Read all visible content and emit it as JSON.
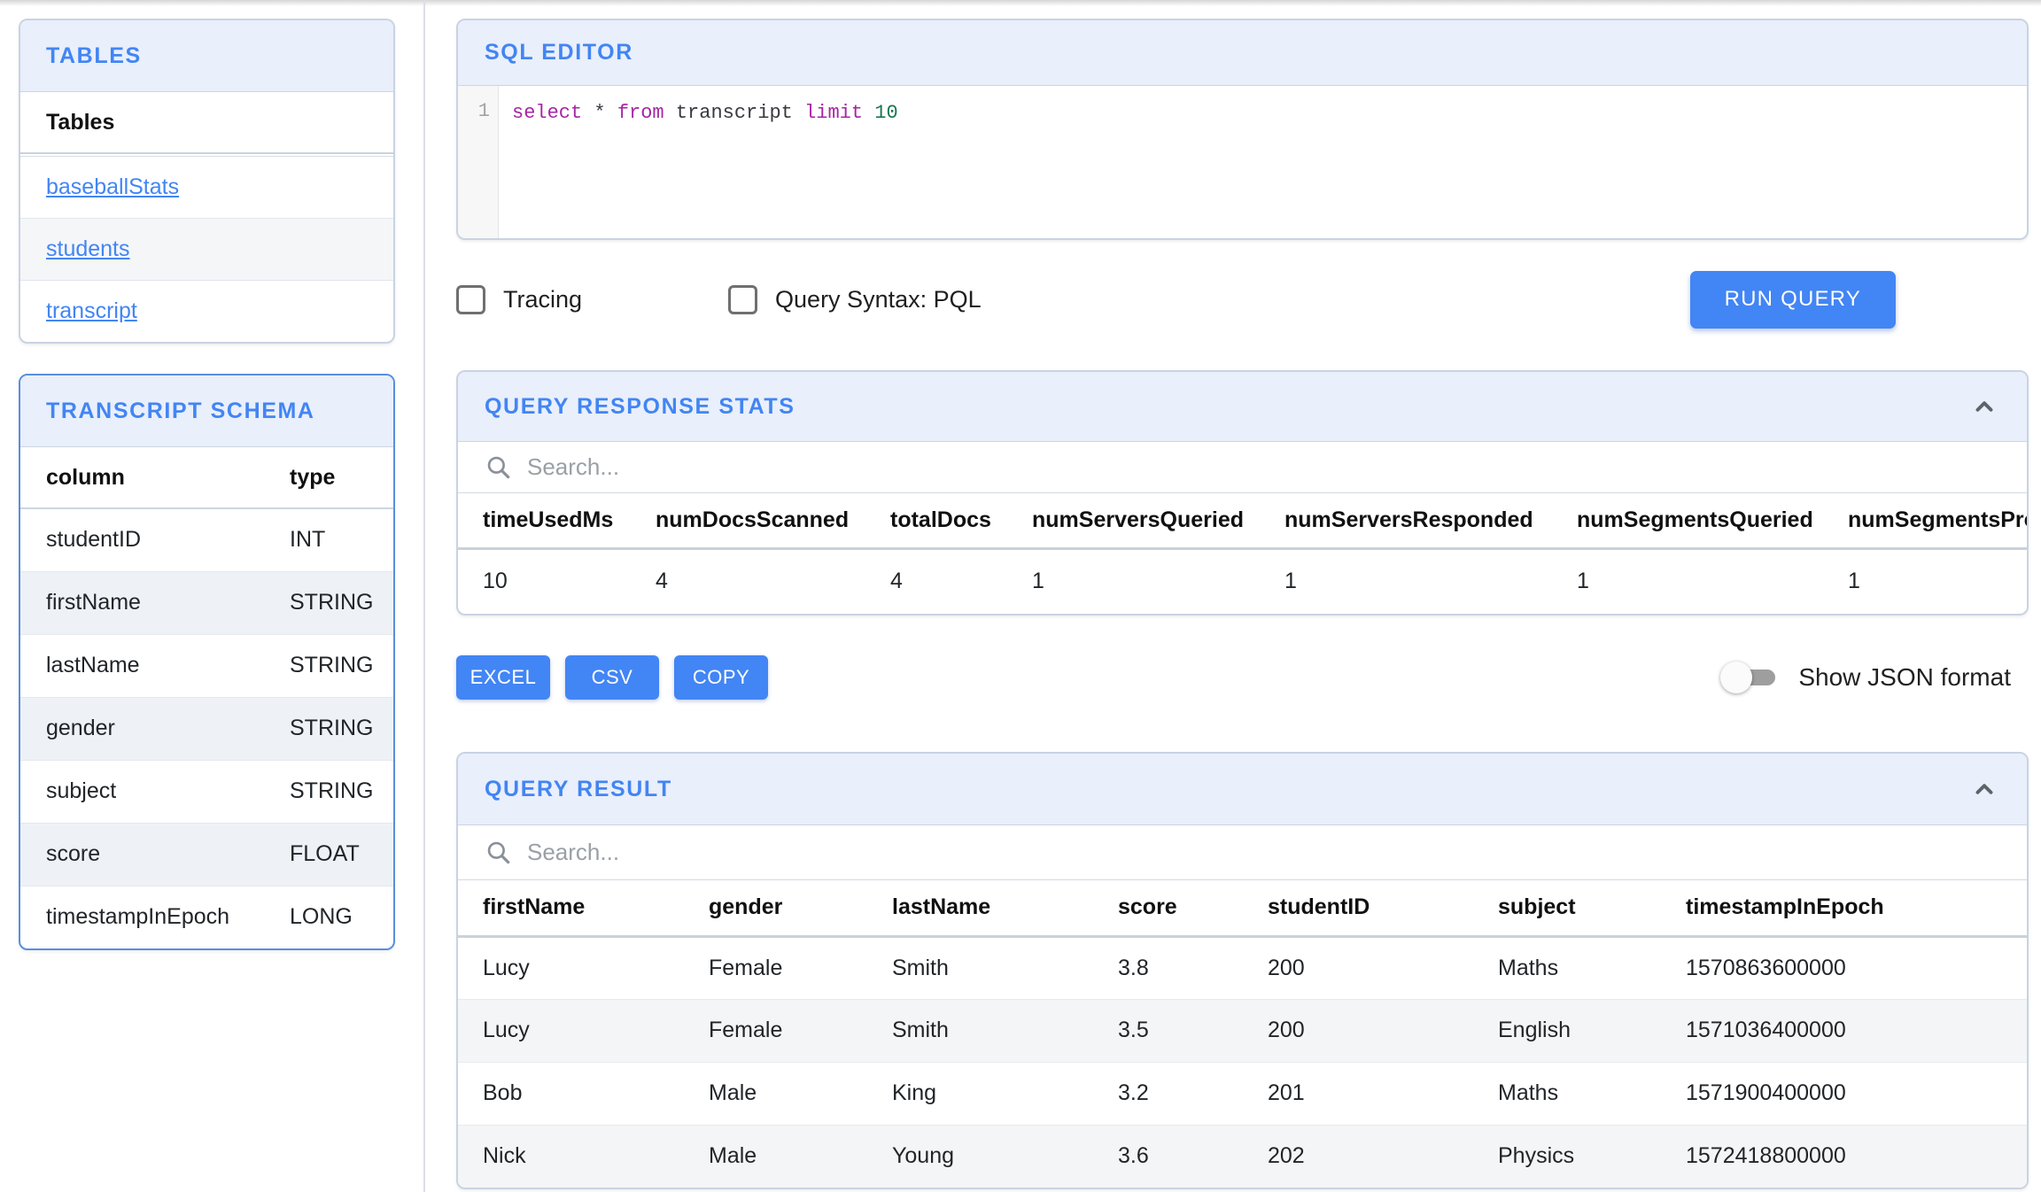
{
  "sidebar": {
    "tables_panel": {
      "title": "TABLES",
      "list_header": "Tables",
      "tables": [
        "baseballStats",
        "students",
        "transcript"
      ]
    },
    "schema_panel": {
      "title": "TRANSCRIPT SCHEMA",
      "columns": [
        "column",
        "type"
      ],
      "rows": [
        [
          "studentID",
          "INT"
        ],
        [
          "firstName",
          "STRING"
        ],
        [
          "lastName",
          "STRING"
        ],
        [
          "gender",
          "STRING"
        ],
        [
          "subject",
          "STRING"
        ],
        [
          "score",
          "FLOAT"
        ],
        [
          "timestampInEpoch",
          "LONG"
        ]
      ]
    }
  },
  "editor": {
    "title": "SQL EDITOR",
    "line_number": "1",
    "query_tokens": [
      {
        "text": "select",
        "type": "keyword"
      },
      {
        "text": " ",
        "type": "plain"
      },
      {
        "text": "*",
        "type": "plain"
      },
      {
        "text": " ",
        "type": "plain"
      },
      {
        "text": "from",
        "type": "keyword"
      },
      {
        "text": " transcript ",
        "type": "plain"
      },
      {
        "text": "limit",
        "type": "keyword"
      },
      {
        "text": " ",
        "type": "plain"
      },
      {
        "text": "10",
        "type": "number"
      }
    ]
  },
  "options": {
    "tracing_label": "Tracing",
    "tracing_checked": false,
    "pql_label": "Query Syntax: PQL",
    "pql_checked": false,
    "run_button_label": "RUN QUERY"
  },
  "stats_panel": {
    "title": "QUERY RESPONSE STATS",
    "search_placeholder": "Search...",
    "columns": [
      "timeUsedMs",
      "numDocsScanned",
      "totalDocs",
      "numServersQueried",
      "numServersResponded",
      "numSegmentsQueried",
      "numSegmentsProcessed"
    ],
    "rows": [
      [
        "10",
        "4",
        "4",
        "1",
        "1",
        "1",
        "1"
      ]
    ]
  },
  "export": {
    "excel_label": "EXCEL",
    "csv_label": "CSV",
    "copy_label": "COPY",
    "toggle_label": "Show JSON format",
    "toggle_on": false
  },
  "result_panel": {
    "title": "QUERY RESULT",
    "search_placeholder": "Search...",
    "columns": [
      "firstName",
      "gender",
      "lastName",
      "score",
      "studentID",
      "subject",
      "timestampInEpoch"
    ],
    "rows": [
      [
        "Lucy",
        "Female",
        "Smith",
        "3.8",
        "200",
        "Maths",
        "1570863600000"
      ],
      [
        "Lucy",
        "Female",
        "Smith",
        "3.5",
        "200",
        "English",
        "1571036400000"
      ],
      [
        "Bob",
        "Male",
        "King",
        "3.2",
        "201",
        "Maths",
        "1571900400000"
      ],
      [
        "Nick",
        "Male",
        "Young",
        "3.6",
        "202",
        "Physics",
        "1572418800000"
      ]
    ]
  },
  "colors": {
    "accent": "#4285f4",
    "panel_header_bg": "#e9effb",
    "keyword_color": "#a626a4",
    "number_color": "#17784e"
  },
  "icons": {
    "search": "magnifier",
    "collapse": "chevron-up"
  }
}
